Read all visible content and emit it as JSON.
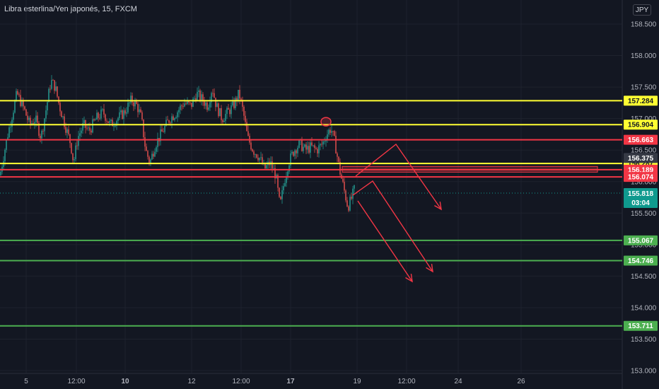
{
  "header": {
    "symbol_title": "Libra esterlina/Yen japonés, 15, FXCM",
    "currency_label": "JPY"
  },
  "colors": {
    "background": "#131722",
    "grid": "#1e222d",
    "yellow": "#ffff33",
    "red": "#f23645",
    "green": "#4caf50",
    "candle_up": "#26a69a",
    "candle_down": "#ef5350",
    "current": "#0f9a8e"
  },
  "chart_data": {
    "type": "candlestick",
    "y_axis_ticks": [
      "158.500",
      "158.000",
      "157.500",
      "157.000",
      "156.500",
      "156.000",
      "155.500",
      "155.000",
      "154.500",
      "154.000",
      "153.500",
      "153.000"
    ],
    "x_axis_ticks": [
      "5",
      "12:00",
      "10",
      "12",
      "12:00",
      "17",
      "19",
      "12:00",
      "24",
      "26"
    ],
    "horizontal_levels": [
      {
        "price": 157.284,
        "label": "157.284",
        "color": "yellow"
      },
      {
        "price": 156.904,
        "label": "156.904",
        "color": "yellow"
      },
      {
        "price": 156.663,
        "label": "156.663",
        "color": "red"
      },
      {
        "price": 156.287,
        "label": "156.287",
        "color": "yellow"
      },
      {
        "price": 156.189,
        "label": "156.189",
        "color": "red"
      },
      {
        "price": 156.074,
        "label": "156.074",
        "color": "red"
      },
      {
        "price": 155.067,
        "label": "155.067",
        "color": "green"
      },
      {
        "price": 154.746,
        "label": "154.746",
        "color": "green"
      },
      {
        "price": 153.711,
        "label": "153.711",
        "color": "green"
      }
    ],
    "gray_tag": {
      "price": 156.375,
      "label": "156.375"
    },
    "current_price": {
      "price": 155.818,
      "label": "155.818",
      "countdown": "03:04"
    },
    "price_path": [
      [
        0,
        156.1
      ],
      [
        10,
        156.7
      ],
      [
        18,
        157.1
      ],
      [
        24,
        157.4
      ],
      [
        34,
        157.15
      ],
      [
        42,
        156.9
      ],
      [
        50,
        157.0
      ],
      [
        58,
        156.7
      ],
      [
        66,
        157.2
      ],
      [
        72,
        157.6
      ],
      [
        78,
        157.5
      ],
      [
        84,
        157.2
      ],
      [
        92,
        156.9
      ],
      [
        100,
        156.6
      ],
      [
        104,
        156.3
      ],
      [
        110,
        156.7
      ],
      [
        118,
        156.9
      ],
      [
        126,
        156.8
      ],
      [
        136,
        157.0
      ],
      [
        146,
        157.1
      ],
      [
        156,
        156.9
      ],
      [
        166,
        157.0
      ],
      [
        176,
        157.1
      ],
      [
        186,
        157.3
      ],
      [
        194,
        157.2
      ],
      [
        200,
        157.0
      ],
      [
        206,
        156.5
      ],
      [
        212,
        156.3
      ],
      [
        220,
        156.6
      ],
      [
        230,
        156.8
      ],
      [
        240,
        157.0
      ],
      [
        250,
        157.1
      ],
      [
        260,
        157.25
      ],
      [
        270,
        157.2
      ],
      [
        278,
        157.4
      ],
      [
        286,
        157.3
      ],
      [
        294,
        157.2
      ],
      [
        300,
        157.5
      ],
      [
        306,
        157.2
      ],
      [
        314,
        157.0
      ],
      [
        322,
        157.1
      ],
      [
        330,
        157.2
      ],
      [
        338,
        157.4
      ],
      [
        344,
        157.1
      ],
      [
        350,
        156.7
      ],
      [
        358,
        156.5
      ],
      [
        366,
        156.4
      ],
      [
        374,
        156.2
      ],
      [
        382,
        156.3
      ],
      [
        390,
        156.1
      ],
      [
        396,
        155.6
      ],
      [
        402,
        156.0
      ],
      [
        408,
        156.3
      ],
      [
        416,
        156.5
      ],
      [
        424,
        156.6
      ],
      [
        432,
        156.5
      ],
      [
        440,
        156.55
      ],
      [
        448,
        156.5
      ],
      [
        456,
        156.6
      ],
      [
        462,
        156.75
      ],
      [
        468,
        156.85
      ],
      [
        474,
        156.6
      ],
      [
        480,
        156.2
      ],
      [
        486,
        155.9
      ],
      [
        492,
        155.6
      ],
      [
        496,
        155.7
      ],
      [
        502,
        155.9
      ]
    ],
    "annotations": {
      "circle_at": {
        "x": 461,
        "price": 156.95
      },
      "zone": {
        "price_top": 156.24,
        "price_bottom": 156.15,
        "x_start": 484,
        "x_end": 845
      }
    }
  }
}
